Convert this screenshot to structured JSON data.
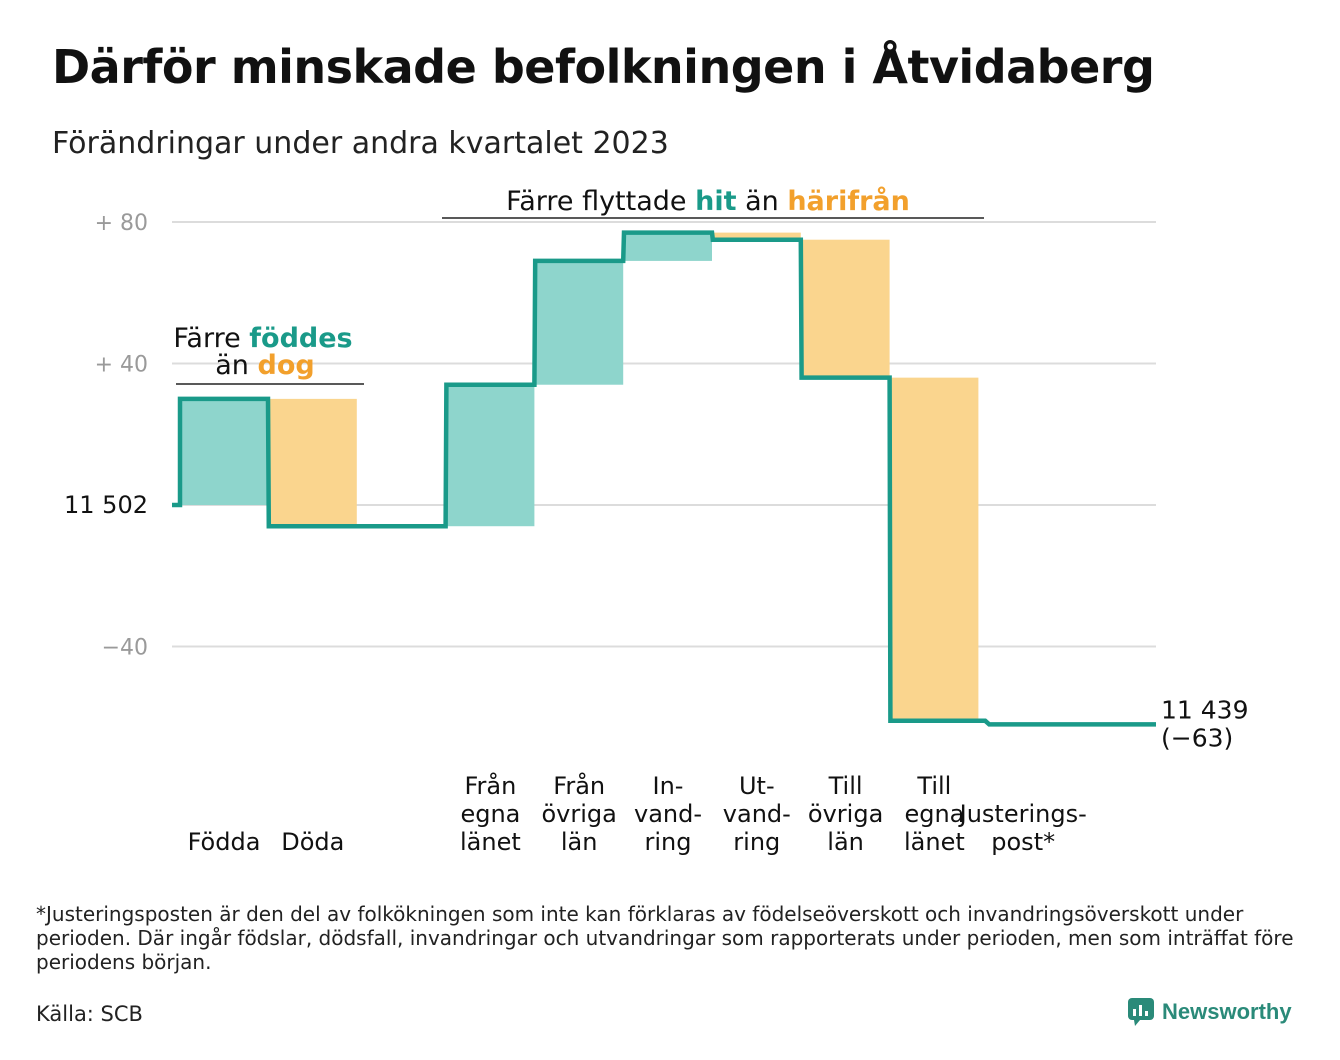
{
  "header": {
    "title": "Därför minskade befolkningen i Åtvidaberg",
    "subtitle": "Förändringar under andra kvartalet 2023"
  },
  "colors": {
    "teal": "#1a9a89",
    "teal_fill": "#8ed5cc",
    "orange": "#f2a02c",
    "orange_fill": "#fad58e",
    "grid": "#dcdcdc",
    "axis_text": "#9a9a9a"
  },
  "chart_data": {
    "type": "waterfall",
    "baseline": 11502,
    "ylim": [
      -80,
      80
    ],
    "yticks": [
      {
        "value": 80,
        "label": "+  80"
      },
      {
        "value": 40,
        "label": "+  40"
      },
      {
        "value": 0,
        "label": "11  502"
      },
      {
        "value": -40,
        "label": "−40"
      }
    ],
    "steps": [
      {
        "label": [
          "Födda"
        ],
        "change": 30,
        "kind": "in"
      },
      {
        "label": [
          "Döda"
        ],
        "change": -36,
        "kind": "out"
      },
      {
        "label": [],
        "change": 0,
        "kind": "gap"
      },
      {
        "label": [
          "Från",
          "egna",
          "länet"
        ],
        "change": 40,
        "kind": "in"
      },
      {
        "label": [
          "Från",
          "övriga",
          "län"
        ],
        "change": 35,
        "kind": "in"
      },
      {
        "label": [
          "In-",
          "vand-",
          "ring"
        ],
        "change": 8,
        "kind": "in"
      },
      {
        "label": [
          "Ut-",
          "vand-",
          "ring"
        ],
        "change": -2,
        "kind": "out"
      },
      {
        "label": [
          "Till",
          "övriga",
          "län"
        ],
        "change": -39,
        "kind": "out"
      },
      {
        "label": [
          "Till",
          "egna",
          "länet"
        ],
        "change": -97,
        "kind": "out"
      },
      {
        "label": [
          "Justerings-",
          "post*"
        ],
        "change": -1,
        "kind": "adjust"
      }
    ],
    "end_value": "11 439",
    "end_change": "(−63)",
    "annotations": [
      {
        "id": "birth",
        "prefix": "Färre ",
        "highlight_in": "föddes",
        "mid": "än ",
        "highlight_out": "dog"
      },
      {
        "id": "migration",
        "prefix": "Färre flyttade ",
        "highlight_in": "hit",
        "mid": " än ",
        "highlight_out": "härifrån"
      }
    ]
  },
  "footnote": "*Justeringsposten är den del av folkökningen som inte kan förklaras av födelseöverskott och invandringsöverskott under perioden. Där ingår födslar, dödsfall, invandringar och utvandringar som rapporterats under perioden, men som inträffat före periodens början.",
  "source": "Källa: SCB",
  "brand": {
    "name": "Newsworthy",
    "icon": "newsworthy-chart-icon"
  }
}
